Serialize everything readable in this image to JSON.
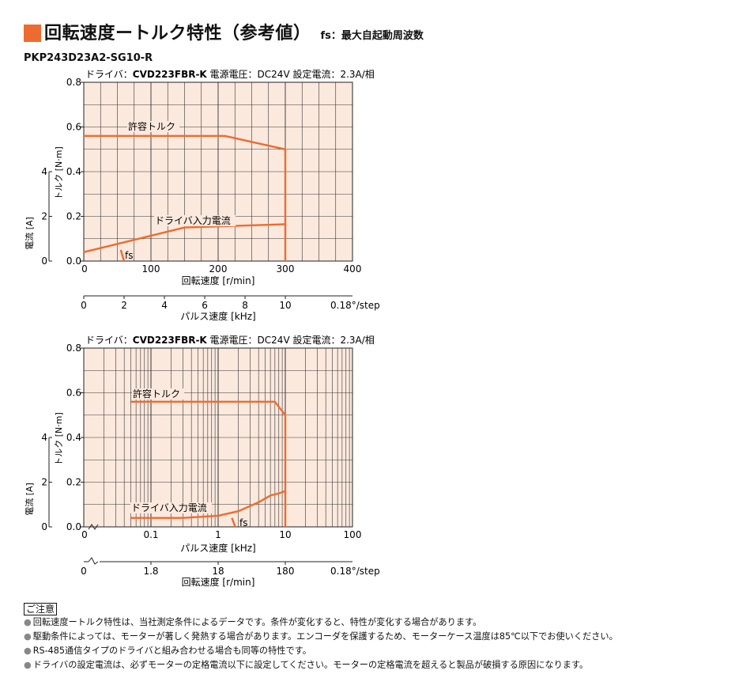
{
  "header": {
    "title": "回転速度ートルク特性（参考値）",
    "subtitle": "fs：最大自起動周波数",
    "model": "PKP243D23A2-SG10-R",
    "accent": "#ee6b2f"
  },
  "charts_text": {
    "driver_prefix": "ドライバ：",
    "driver_name": "CVD223FBR-K",
    "voltage": "電源電圧：DC24V",
    "current_setting": "設定電流：2.3A/相",
    "torque_label": "トルク [N·m]",
    "current_label": "電流 [A]",
    "speed_label": "回転速度 [r/min]",
    "pulse_label": "パルス速度 [kHz]",
    "step_label": "0.18°/step",
    "allowable_torque": "許容トルク",
    "driver_current": "ドライバ入力電流",
    "fs": "fs"
  },
  "chart_data": [
    {
      "type": "line",
      "x_axis": {
        "label": "回転速度 [r/min]",
        "range": [
          0,
          400
        ],
        "ticks": [
          0,
          100,
          200,
          300,
          400
        ],
        "scale": "linear"
      },
      "x2_axis": {
        "label": "パルス速度 [kHz]",
        "range": [
          0,
          13.33
        ],
        "ticks": [
          0,
          2,
          4,
          6,
          8,
          10
        ],
        "note": "0.18°/step"
      },
      "y_axis": {
        "label": "トルク [N·m]",
        "range": [
          0,
          0.8
        ],
        "ticks": [
          0,
          0.2,
          0.4,
          0.6,
          0.8
        ]
      },
      "y2_axis": {
        "label": "電流 [A]",
        "ticks": [
          0,
          2,
          4
        ]
      },
      "grid": true,
      "series": [
        {
          "name": "許容トルク",
          "x": [
            0,
            210,
            300,
            300
          ],
          "y": [
            0.56,
            0.56,
            0.5,
            0.0
          ]
        },
        {
          "name": "ドライバ入力電流",
          "x": [
            0,
            150,
            300
          ],
          "y": [
            0.04,
            0.15,
            0.165
          ]
        },
        {
          "name": "fs",
          "x": [
            55,
            60
          ],
          "y": [
            0.05,
            0.0
          ]
        }
      ]
    },
    {
      "type": "line",
      "x_axis": {
        "label": "パルス速度 [kHz]",
        "range": [
          0.01,
          100
        ],
        "ticks": [
          0.1,
          1,
          10,
          100
        ],
        "scale": "log"
      },
      "x2_axis": {
        "label": "回転速度 [r/min]",
        "ticks": [
          1.8,
          18,
          180
        ],
        "note": "0.18°/step"
      },
      "y_axis": {
        "label": "トルク [N·m]",
        "range": [
          0,
          0.8
        ],
        "ticks": [
          0,
          0.2,
          0.4,
          0.6,
          0.8
        ]
      },
      "y2_axis": {
        "label": "電流 [A]",
        "ticks": [
          0,
          2,
          4
        ]
      },
      "grid": true,
      "series": [
        {
          "name": "許容トルク",
          "x": [
            0.05,
            7,
            10,
            10
          ],
          "y": [
            0.56,
            0.56,
            0.5,
            0.0
          ]
        },
        {
          "name": "ドライバ入力電流",
          "x": [
            0.05,
            0.3,
            1,
            2,
            4,
            6,
            8,
            10
          ],
          "y": [
            0.04,
            0.04,
            0.05,
            0.07,
            0.11,
            0.14,
            0.15,
            0.16
          ]
        },
        {
          "name": "fs",
          "x": [
            1.6,
            1.8
          ],
          "y": [
            0.04,
            0.0
          ]
        }
      ]
    }
  ],
  "notes": {
    "label": "ご注意",
    "items": [
      "回転速度ートルク特性は、当社測定条件によるデータです。条件が変化すると、特性が変化する場合があります。",
      "駆動条件によっては、モーターが著しく発熱する場合があります。エンコーダを保護するため、モーターケース温度は85℃以下でお使いください。",
      "RS-485通信タイプのドライバと組み合わせる場合も同等の特性です。",
      "ドライバの設定電流は、必ずモーターの定格電流以下に設定してください。モーターの定格電流を超えると製品が破損する原因になります。"
    ]
  },
  "colors": {
    "plot_bg": "#fbe9de",
    "curve": "#ee6b2f",
    "grid": "#333333"
  }
}
